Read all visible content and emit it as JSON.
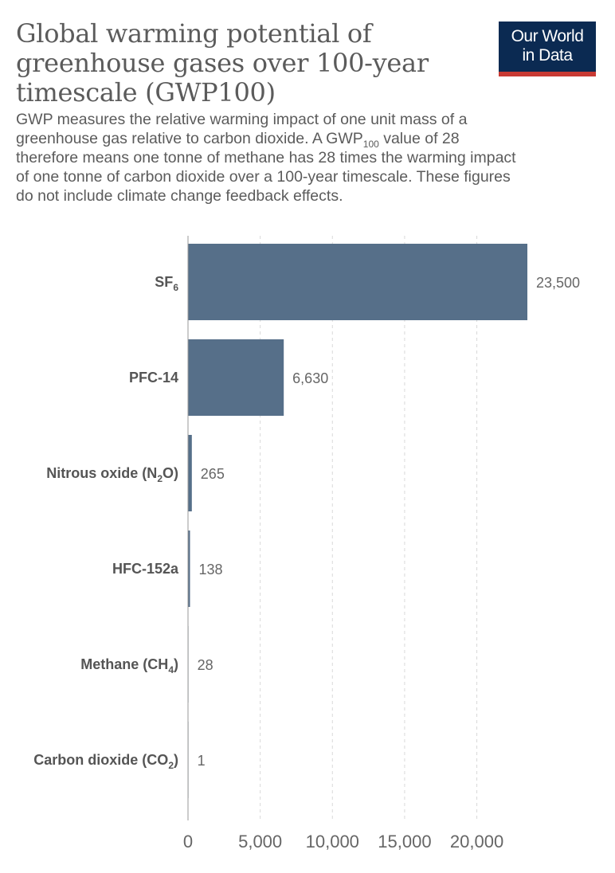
{
  "header": {
    "title": "Global warming potential of greenhouse gases over 100-year timescale (GWP100)",
    "subtitle_part1": "GWP measures the relative warming impact of one unit mass of a greenhouse gas relative to carbon dioxide. A GWP",
    "subtitle_sub": "100",
    "subtitle_part2": " value of 28 therefore means one tonne of methane has 28 times the warming impact of one tonne of carbon dioxide over a 100-year timescale. These figures do not include climate change feedback effects."
  },
  "logo": {
    "line1": "Our World",
    "line2": "in Data"
  },
  "colors": {
    "bar": "#566f89",
    "grid": "#d9d9d9",
    "axis": "#999999",
    "logo_bg": "#0b2a52",
    "logo_accent": "#c83a34"
  },
  "chart_data": {
    "type": "bar",
    "orientation": "horizontal",
    "title": "Global warming potential of greenhouse gases over 100-year timescale (GWP100)",
    "xlabel": "",
    "ylabel": "",
    "xlim": [
      0,
      23500
    ],
    "xticks": [
      0,
      5000,
      10000,
      15000,
      20000
    ],
    "xtick_labels": [
      "0",
      "5,000",
      "10,000",
      "15,000",
      "20,000"
    ],
    "grid": true,
    "categories": [
      {
        "name": "SF",
        "sub": "6",
        "suffix": ""
      },
      {
        "name": "PFC-14",
        "sub": "",
        "suffix": ""
      },
      {
        "name": "Nitrous oxide (N",
        "sub": "2",
        "suffix": "O)"
      },
      {
        "name": "HFC-152a",
        "sub": "",
        "suffix": ""
      },
      {
        "name": "Methane (CH",
        "sub": "4",
        "suffix": ")"
      },
      {
        "name": "Carbon dioxide (CO",
        "sub": "2",
        "suffix": ")"
      }
    ],
    "values": [
      23500,
      6630,
      265,
      138,
      28,
      1
    ],
    "value_labels": [
      "23,500",
      "6,630",
      "265",
      "138",
      "28",
      "1"
    ]
  }
}
